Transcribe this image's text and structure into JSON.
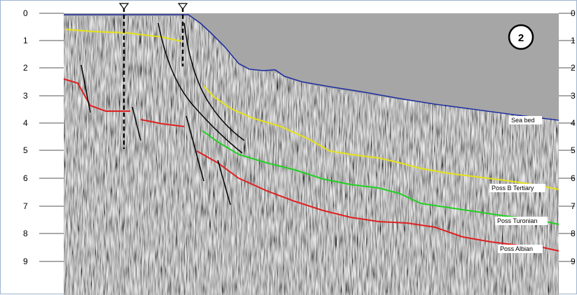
{
  "depth_axis": {
    "ticks": [
      "0",
      "1",
      "2",
      "3",
      "4",
      "5",
      "6",
      "7",
      "8",
      "9"
    ]
  },
  "badge": {
    "number": "2"
  },
  "horizons": [
    {
      "name": "Sea bed",
      "color": "#1f2fa0"
    },
    {
      "name": "Poss B Tertiary",
      "color": "#e6e21a"
    },
    {
      "name": "Poss Turonian",
      "color": "#22d022"
    },
    {
      "name": "Poss Albian",
      "color": "#e02020"
    }
  ],
  "fault_color": "#000000",
  "well_color": "#000000",
  "water_color": "#a6a6a6"
}
